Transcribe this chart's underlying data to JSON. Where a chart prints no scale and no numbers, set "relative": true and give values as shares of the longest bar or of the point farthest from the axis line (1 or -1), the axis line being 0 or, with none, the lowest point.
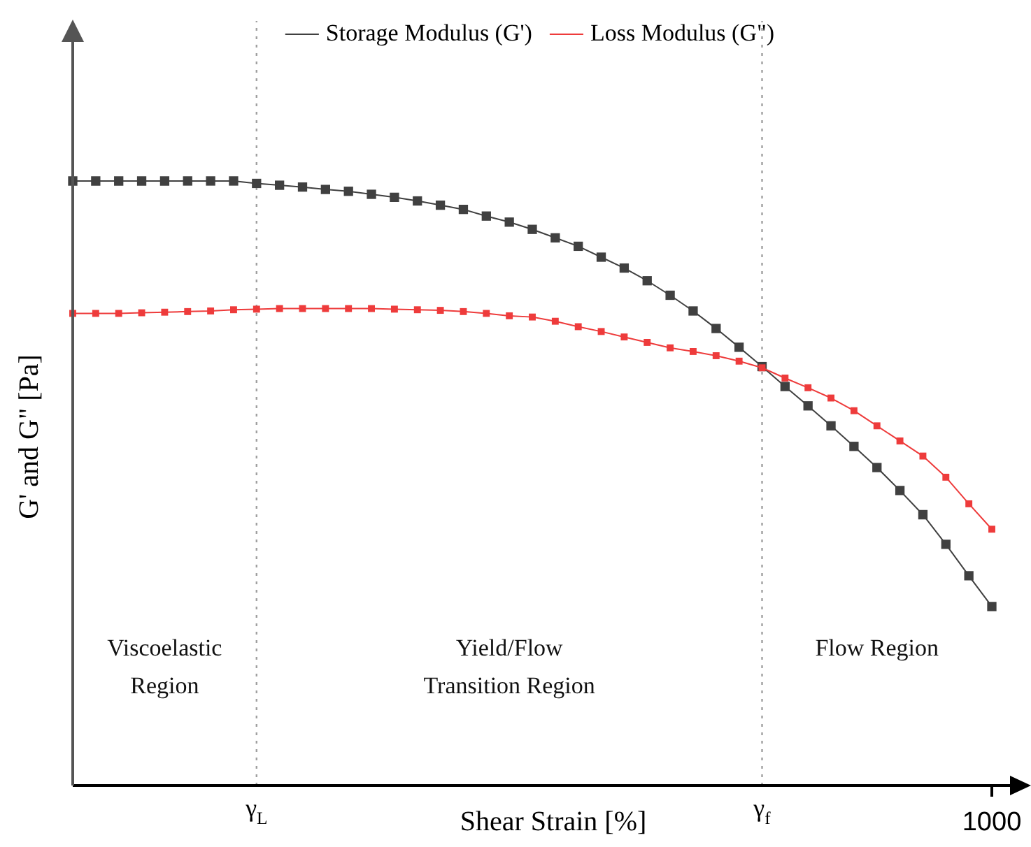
{
  "chart_data": {
    "type": "line",
    "relative": true,
    "xlabel": "Shear Strain [%]",
    "ylabel": "G' and G\" [Pa]",
    "legend": "top",
    "marker": "square",
    "line_style": "solid",
    "grid": false,
    "categories": [
      null,
      null,
      null,
      null,
      null,
      null,
      null,
      null,
      "γ$_{L}$",
      null,
      null,
      null,
      null,
      null,
      null,
      null,
      null,
      null,
      null,
      null,
      null,
      null,
      null,
      null,
      null,
      null,
      null,
      null,
      null,
      null,
      "γ$_{f}$",
      null,
      null,
      null,
      null,
      null,
      null,
      null,
      null,
      null,
      "1000"
    ],
    "series": [
      {
        "name": "Storage Modulus (G')",
        "color": "#404040",
        "values": [
          1,
          1,
          1,
          1,
          1,
          1,
          1,
          1,
          0.996,
          0.993,
          0.99,
          0.986,
          0.983,
          0.978,
          0.973,
          0.967,
          0.96,
          0.953,
          0.942,
          0.932,
          0.92,
          0.906,
          0.892,
          0.874,
          0.856,
          0.835,
          0.811,
          0.785,
          0.756,
          0.725,
          0.693,
          0.66,
          0.628,
          0.595,
          0.561,
          0.526,
          0.488,
          0.448,
          0.399,
          0.347,
          0.296
        ]
      },
      {
        "name": "Loss Modulus (G\")",
        "color": "#ee3b3b",
        "values": [
          0.781,
          0.781,
          0.781,
          0.782,
          0.783,
          0.784,
          0.785,
          0.787,
          0.788,
          0.789,
          0.789,
          0.789,
          0.789,
          0.789,
          0.788,
          0.787,
          0.786,
          0.784,
          0.781,
          0.777,
          0.775,
          0.768,
          0.759,
          0.751,
          0.742,
          0.733,
          0.724,
          0.718,
          0.711,
          0.702,
          0.691,
          0.674,
          0.658,
          0.641,
          0.62,
          0.595,
          0.57,
          0.545,
          0.51,
          0.466,
          0.424
        ]
      }
    ],
    "ref_lines": [
      {
        "axis": "x",
        "value": "γ$_{L}$",
        "color": "#a0a0a0",
        "line_style": "dotted"
      },
      {
        "axis": "x",
        "value": "γ$_{f}$",
        "color": "#a0a0a0",
        "line_style": "dotted"
      }
    ],
    "annotations": [
      "Viscoelastic Region",
      "Yield/Flow Transition Region",
      "Flow Region"
    ]
  }
}
